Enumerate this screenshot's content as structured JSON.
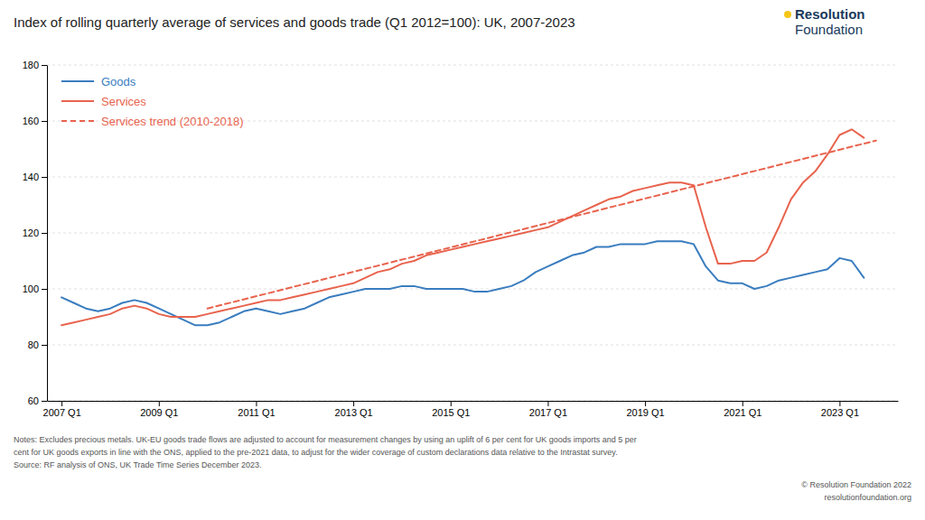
{
  "chart_data": {
    "type": "line",
    "title": "Index of rolling quarterly average of services and goods trade (Q1 2012=100): UK, 2007-2023",
    "logo": [
      "Resolution",
      "Foundation"
    ],
    "notes": [
      "Notes: Excludes precious metals. UK-EU goods trade flows are adjusted to account for measurement changes by using an uplift of 6 per cent for UK goods imports and 5 per",
      "cent for UK goods exports in line with the ONS, applied to the pre-2021 data, to adjust for the wider coverage of custom declarations data relative to the Intrastat survey.",
      "Source: RF analysis of ONS, UK Trade Time Series December 2023."
    ],
    "credits": [
      "© Resolution Foundation 2022",
      "resolutionfoundation.org"
    ],
    "xlim": [
      2006.7,
      2024.2
    ],
    "xticks": [
      {
        "value": 2007.0,
        "label": "2007 Q1"
      },
      {
        "value": 2009.0,
        "label": "2009 Q1"
      },
      {
        "value": 2011.0,
        "label": "2011 Q1"
      },
      {
        "value": 2013.0,
        "label": "2013 Q1"
      },
      {
        "value": 2015.0,
        "label": "2015 Q1"
      },
      {
        "value": 2017.0,
        "label": "2017 Q1"
      },
      {
        "value": 2019.0,
        "label": "2019 Q1"
      },
      {
        "value": 2021.0,
        "label": "2021 Q1"
      },
      {
        "value": 2023.0,
        "label": "2023 Q1"
      }
    ],
    "ylim": [
      60,
      180
    ],
    "yticks": [
      60,
      80,
      100,
      120,
      140,
      160,
      180
    ],
    "grid": "y",
    "legend": "upper left",
    "series": [
      {
        "name": "Goods",
        "color": "#3a7dbf",
        "line_style": "solid",
        "x": [
          2007.0,
          2007.25,
          2007.5,
          2007.75,
          2008.0,
          2008.25,
          2008.5,
          2008.75,
          2009.0,
          2009.25,
          2009.5,
          2009.75,
          2010.0,
          2010.25,
          2010.5,
          2010.75,
          2011.0,
          2011.25,
          2011.5,
          2011.75,
          2012.0,
          2012.25,
          2012.5,
          2012.75,
          2013.0,
          2013.25,
          2013.5,
          2013.75,
          2014.0,
          2014.25,
          2014.5,
          2014.75,
          2015.0,
          2015.25,
          2015.5,
          2015.75,
          2016.0,
          2016.25,
          2016.5,
          2016.75,
          2017.0,
          2017.25,
          2017.5,
          2017.75,
          2018.0,
          2018.25,
          2018.5,
          2018.75,
          2019.0,
          2019.25,
          2019.5,
          2019.75,
          2020.0,
          2020.25,
          2020.5,
          2020.75,
          2021.0,
          2021.25,
          2021.5,
          2021.75,
          2022.0,
          2022.25,
          2022.5,
          2022.75,
          2023.0,
          2023.25,
          2023.5
        ],
        "values": [
          97,
          95,
          93,
          92,
          93,
          95,
          96,
          95,
          93,
          91,
          89,
          87,
          87,
          88,
          90,
          92,
          93,
          92,
          91,
          92,
          93,
          95,
          97,
          98,
          99,
          100,
          100,
          100,
          101,
          101,
          100,
          100,
          100,
          100,
          99,
          99,
          100,
          101,
          103,
          106,
          108,
          110,
          112,
          113,
          115,
          115,
          116,
          116,
          116,
          117,
          117,
          117,
          116,
          108,
          103,
          102,
          102,
          100,
          101,
          103,
          104,
          105,
          106,
          107,
          111,
          110,
          104
        ]
      },
      {
        "name": "Services",
        "color": "#e8634e",
        "line_style": "solid",
        "x": [
          2007.0,
          2007.25,
          2007.5,
          2007.75,
          2008.0,
          2008.25,
          2008.5,
          2008.75,
          2009.0,
          2009.25,
          2009.5,
          2009.75,
          2010.0,
          2010.25,
          2010.5,
          2010.75,
          2011.0,
          2011.25,
          2011.5,
          2011.75,
          2012.0,
          2012.25,
          2012.5,
          2012.75,
          2013.0,
          2013.25,
          2013.5,
          2013.75,
          2014.0,
          2014.25,
          2014.5,
          2014.75,
          2015.0,
          2015.25,
          2015.5,
          2015.75,
          2016.0,
          2016.25,
          2016.5,
          2016.75,
          2017.0,
          2017.25,
          2017.5,
          2017.75,
          2018.0,
          2018.25,
          2018.5,
          2018.75,
          2019.0,
          2019.25,
          2019.5,
          2019.75,
          2020.0,
          2020.25,
          2020.5,
          2020.75,
          2021.0,
          2021.25,
          2021.5,
          2021.75,
          2022.0,
          2022.25,
          2022.5,
          2022.75,
          2023.0,
          2023.25,
          2023.5
        ],
        "values": [
          87,
          88,
          89,
          90,
          91,
          93,
          94,
          93,
          91,
          90,
          90,
          90,
          91,
          92,
          93,
          94,
          95,
          96,
          96,
          97,
          98,
          99,
          100,
          101,
          102,
          104,
          106,
          107,
          109,
          110,
          112,
          113,
          114,
          115,
          116,
          117,
          118,
          119,
          120,
          121,
          122,
          124,
          126,
          128,
          130,
          132,
          133,
          135,
          136,
          137,
          138,
          138,
          137,
          122,
          109,
          109,
          110,
          110,
          113,
          122,
          132,
          138,
          142,
          148,
          155,
          157,
          154
        ]
      },
      {
        "name": "Services trend (2010-2018)",
        "color": "#e8634e",
        "line_style": "dashed",
        "x": [
          2010.0,
          2023.75
        ],
        "values": [
          93.0,
          153.0
        ]
      }
    ]
  }
}
